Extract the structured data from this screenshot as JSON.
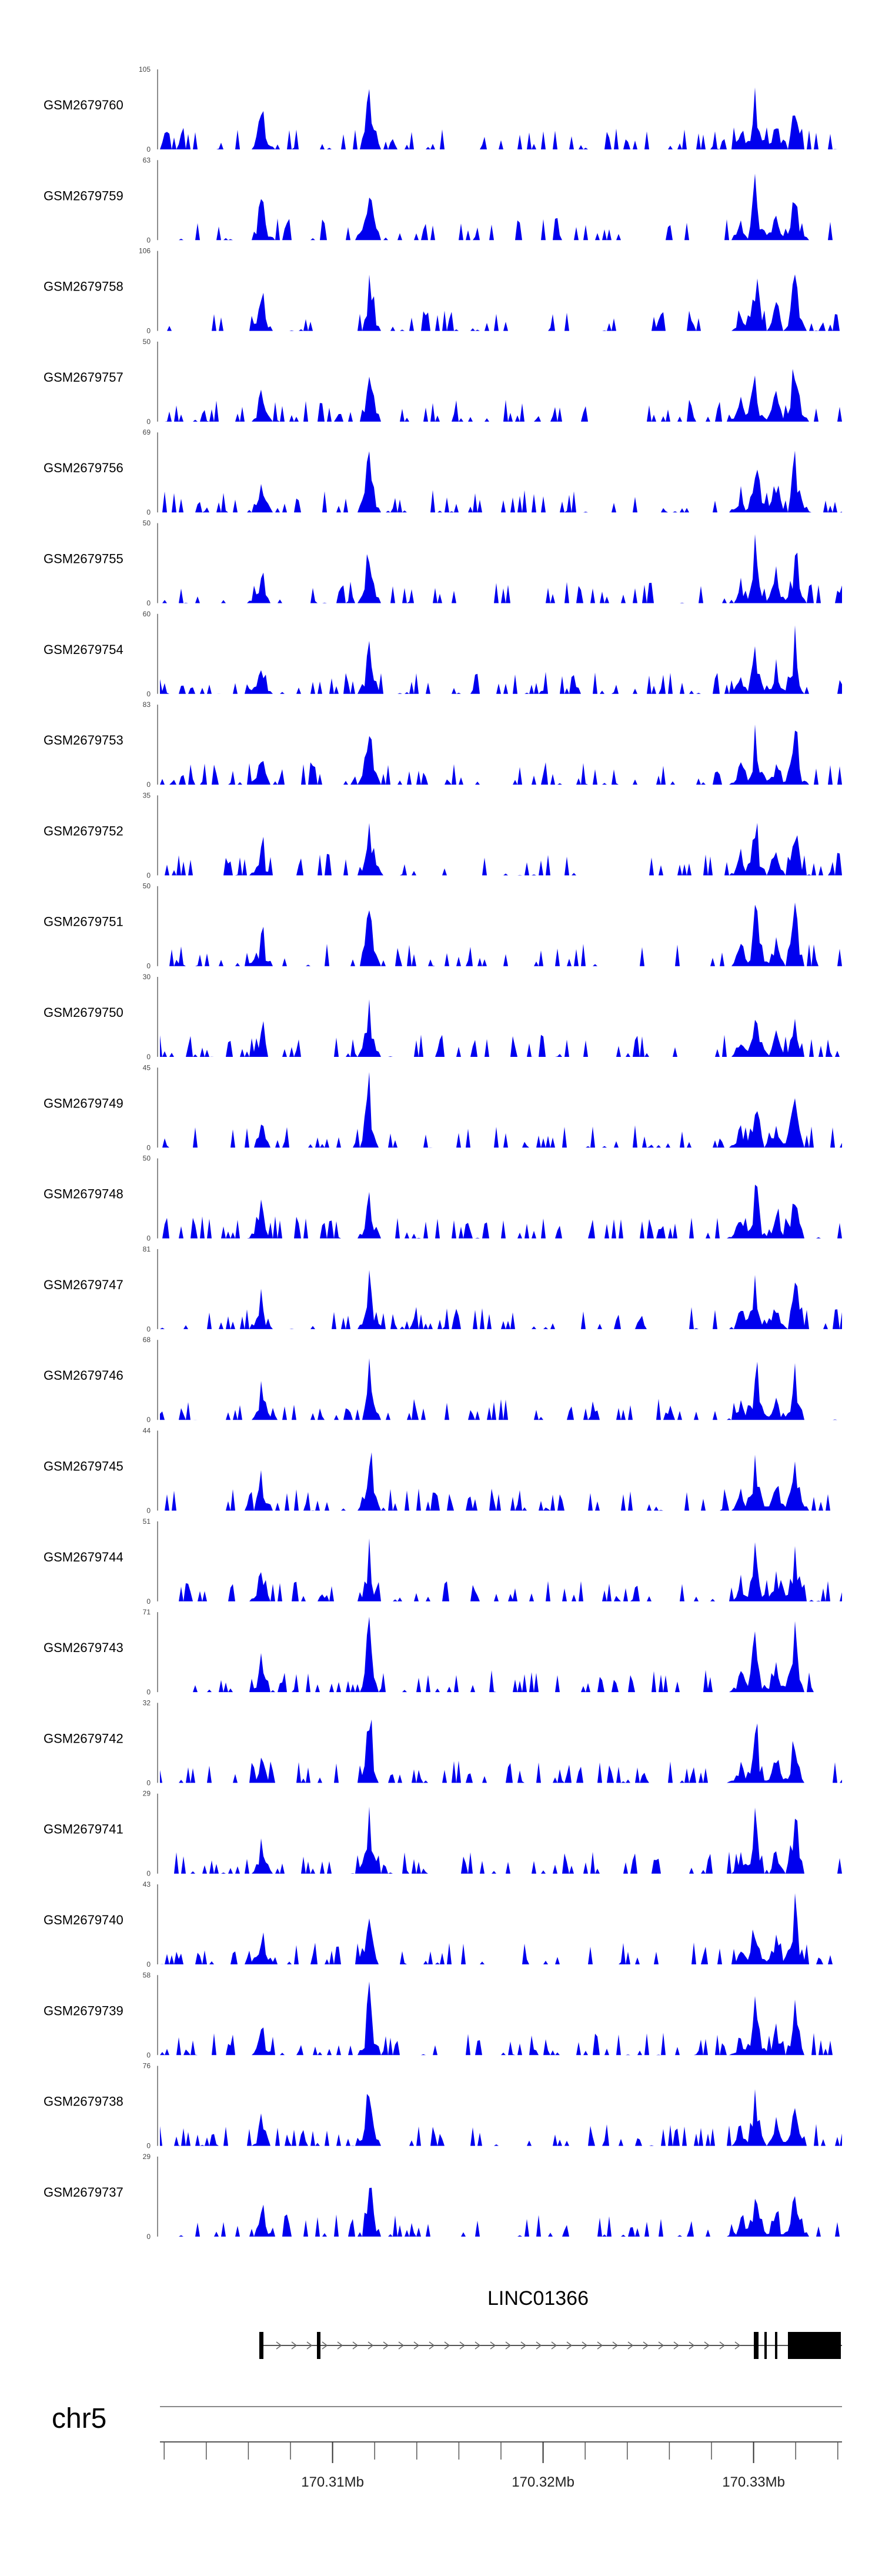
{
  "chart_data": {
    "type": "area",
    "chromosome": "chr5",
    "gene": {
      "name": "LINC01366",
      "strand": "+"
    },
    "x_range_mb": [
      170.3018,
      170.3342
    ],
    "x_ticks_mb": [
      {
        "value": 170.31,
        "label": "170.31Mb"
      },
      {
        "value": 170.32,
        "label": "170.32Mb"
      },
      {
        "value": 170.33,
        "label": "170.33Mb"
      }
    ],
    "fill_color": "#0000ee",
    "tracks": [
      {
        "name": "GSM2679760",
        "max": "105"
      },
      {
        "name": "GSM2679759",
        "max": "63"
      },
      {
        "name": "GSM2679758",
        "max": "106"
      },
      {
        "name": "GSM2679757",
        "max": "50"
      },
      {
        "name": "GSM2679756",
        "max": "69"
      },
      {
        "name": "GSM2679755",
        "max": "50"
      },
      {
        "name": "GSM2679754",
        "max": "60"
      },
      {
        "name": "GSM2679753",
        "max": "83"
      },
      {
        "name": "GSM2679752",
        "max": "35"
      },
      {
        "name": "GSM2679751",
        "max": "50"
      },
      {
        "name": "GSM2679750",
        "max": "30"
      },
      {
        "name": "GSM2679749",
        "max": "45"
      },
      {
        "name": "GSM2679748",
        "max": "50"
      },
      {
        "name": "GSM2679747",
        "max": "81"
      },
      {
        "name": "GSM2679746",
        "max": "68"
      },
      {
        "name": "GSM2679745",
        "max": "44"
      },
      {
        "name": "GSM2679744",
        "max": "51"
      },
      {
        "name": "GSM2679743",
        "max": "71"
      },
      {
        "name": "GSM2679742",
        "max": "32"
      },
      {
        "name": "GSM2679741",
        "max": "29"
      },
      {
        "name": "GSM2679740",
        "max": "43"
      },
      {
        "name": "GSM2679739",
        "max": "58"
      },
      {
        "name": "GSM2679738",
        "max": "76"
      },
      {
        "name": "GSM2679737",
        "max": "29"
      }
    ]
  }
}
